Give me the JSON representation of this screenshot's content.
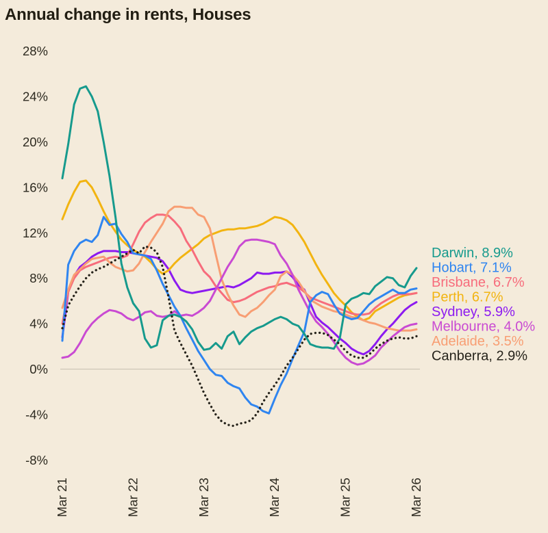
{
  "title": "Annual change in rents, Houses",
  "colors": {
    "background": "#f4ebdb",
    "title_text": "#211d12",
    "axis_text": "#2d2a20",
    "zero_line": "#cdc6b7"
  },
  "chart_data": {
    "type": "line",
    "title": "Annual change in rents, Houses",
    "xlabel": "",
    "ylabel": "",
    "y_unit": "%",
    "ylim": [
      -8,
      28
    ],
    "y_ticks": [
      28,
      24,
      20,
      16,
      12,
      8,
      4,
      0,
      -4,
      -8
    ],
    "y_tick_labels": [
      "28%",
      "24%",
      "20%",
      "16%",
      "12%",
      "8%",
      "4%",
      "0%",
      "-4%",
      "-8%"
    ],
    "x_tick_labels": [
      "Mar 21",
      "Mar 22",
      "Mar 23",
      "Mar 24",
      "Mar 25",
      "Mar 26"
    ],
    "x_tick_indices": [
      0,
      12,
      24,
      36,
      48,
      60
    ],
    "x_range_months": 60,
    "grid": "zero-line-only",
    "legend_position": "right",
    "series": [
      {
        "name": "Darwin",
        "label": "Darwin, 8.9%",
        "end_value": 8.9,
        "color": "#169a8d",
        "style": "solid",
        "values": [
          16.8,
          19.8,
          23.3,
          24.7,
          24.9,
          24.0,
          22.7,
          20.0,
          17.0,
          13.4,
          9.3,
          7.2,
          5.8,
          5.1,
          2.7,
          1.9,
          2.1,
          4.3,
          4.7,
          4.8,
          4.6,
          4.2,
          3.5,
          2.4,
          1.7,
          1.8,
          2.3,
          1.8,
          2.9,
          3.3,
          2.2,
          2.8,
          3.3,
          3.6,
          3.8,
          4.1,
          4.4,
          4.6,
          4.4,
          4.0,
          3.8,
          3.1,
          2.2,
          2.0,
          1.9,
          1.9,
          1.8,
          2.7,
          5.7,
          6.2,
          6.4,
          6.7,
          6.6,
          7.3,
          7.7,
          8.1,
          8.0,
          7.4,
          7.2,
          8.2,
          8.9
        ]
      },
      {
        "name": "Hobart",
        "label": "Hobart, 7.1%",
        "end_value": 7.1,
        "color": "#2f85f0",
        "style": "solid",
        "values": [
          2.5,
          9.2,
          10.4,
          11.1,
          11.4,
          11.2,
          11.8,
          13.4,
          12.7,
          12.8,
          11.9,
          11.2,
          10.2,
          10.1,
          10.0,
          9.7,
          8.7,
          7.5,
          6.5,
          5.5,
          4.7,
          3.6,
          2.6,
          1.6,
          0.8,
          0.0,
          -0.5,
          -0.6,
          -1.2,
          -1.5,
          -1.7,
          -2.5,
          -3.1,
          -3.3,
          -3.7,
          -3.9,
          -2.6,
          -1.4,
          -0.4,
          0.9,
          2.1,
          3.3,
          5.9,
          6.5,
          6.8,
          6.6,
          5.7,
          4.9,
          4.6,
          4.4,
          4.5,
          5.1,
          5.7,
          6.1,
          6.4,
          6.7,
          7.0,
          6.7,
          6.7,
          7.0,
          7.1
        ]
      },
      {
        "name": "Brisbane",
        "label": "Brisbane, 6.7%",
        "end_value": 6.7,
        "color": "#f76c7c",
        "style": "solid",
        "values": [
          4.0,
          6.8,
          8.0,
          8.7,
          9.0,
          9.2,
          9.4,
          9.6,
          9.8,
          9.9,
          9.8,
          10.0,
          11.0,
          12.1,
          12.9,
          13.3,
          13.6,
          13.6,
          13.5,
          13.0,
          12.4,
          11.3,
          10.5,
          9.5,
          8.6,
          8.1,
          7.3,
          6.7,
          6.1,
          5.9,
          6.0,
          6.2,
          6.5,
          6.8,
          7.0,
          7.2,
          7.3,
          7.5,
          7.6,
          7.4,
          7.2,
          6.8,
          6.3,
          6.1,
          5.9,
          5.7,
          5.5,
          5.3,
          5.1,
          4.9,
          4.8,
          4.8,
          4.9,
          5.4,
          5.8,
          6.1,
          6.4,
          6.6,
          6.6,
          6.6,
          6.7
        ]
      },
      {
        "name": "Perth",
        "label": "Perth, 6.7%",
        "end_value": 6.7,
        "color": "#f2b411",
        "style": "solid",
        "values": [
          13.2,
          14.5,
          15.6,
          16.5,
          16.6,
          16.0,
          15.0,
          13.9,
          12.9,
          12.1,
          11.4,
          10.9,
          10.5,
          10.2,
          9.9,
          9.4,
          8.8,
          8.4,
          8.7,
          9.3,
          9.8,
          10.2,
          10.6,
          11.0,
          11.5,
          11.8,
          12.0,
          12.2,
          12.3,
          12.3,
          12.4,
          12.4,
          12.5,
          12.6,
          12.8,
          13.1,
          13.4,
          13.3,
          13.1,
          12.7,
          12.0,
          11.2,
          10.2,
          9.2,
          8.3,
          7.5,
          6.7,
          6.1,
          5.6,
          5.0,
          4.6,
          4.3,
          4.5,
          5.1,
          5.4,
          5.7,
          6.0,
          6.3,
          6.5,
          6.6,
          6.7
        ]
      },
      {
        "name": "Sydney",
        "label": "Sydney, 5.9%",
        "end_value": 5.9,
        "color": "#8c1af0",
        "style": "solid",
        "values": [
          2.8,
          6.8,
          8.2,
          9.0,
          9.4,
          9.9,
          10.2,
          10.4,
          10.4,
          10.4,
          10.3,
          10.3,
          10.2,
          10.1,
          10.0,
          9.9,
          9.8,
          9.5,
          8.8,
          7.8,
          7.0,
          6.8,
          6.7,
          6.8,
          6.9,
          7.0,
          7.1,
          7.2,
          7.3,
          7.2,
          7.4,
          7.7,
          8.0,
          8.5,
          8.4,
          8.4,
          8.5,
          8.5,
          8.6,
          8.1,
          7.4,
          7.0,
          5.8,
          4.6,
          4.1,
          3.7,
          3.2,
          2.7,
          2.3,
          1.8,
          1.5,
          1.3,
          1.6,
          2.2,
          2.9,
          3.5,
          4.0,
          4.6,
          5.2,
          5.6,
          5.9
        ]
      },
      {
        "name": "Melbourne",
        "label": "Melbourne, 4.0%",
        "end_value": 4.0,
        "color": "#c94ad2",
        "style": "solid",
        "values": [
          1.0,
          1.1,
          1.5,
          2.3,
          3.3,
          4.0,
          4.5,
          4.9,
          5.2,
          5.1,
          4.9,
          4.5,
          4.3,
          4.6,
          5.0,
          5.1,
          4.7,
          4.6,
          4.7,
          5.1,
          4.7,
          4.8,
          4.7,
          5.0,
          5.4,
          6.0,
          7.0,
          8.0,
          9.0,
          9.8,
          10.8,
          11.3,
          11.4,
          11.4,
          11.3,
          11.2,
          11.0,
          10.0,
          9.3,
          8.3,
          7.0,
          6.0,
          5.0,
          4.2,
          3.7,
          3.1,
          2.4,
          1.6,
          1.0,
          0.6,
          0.4,
          0.5,
          0.8,
          1.2,
          1.9,
          2.4,
          2.9,
          3.3,
          3.7,
          3.9,
          4.0
        ]
      },
      {
        "name": "Adelaide",
        "label": "Adelaide, 3.5%",
        "end_value": 3.5,
        "color": "#f89e73",
        "style": "solid",
        "values": [
          5.4,
          7.0,
          8.3,
          8.8,
          9.3,
          9.7,
          9.8,
          9.9,
          9.4,
          9.0,
          8.8,
          8.6,
          8.7,
          9.3,
          10.3,
          11.2,
          12.0,
          12.8,
          13.9,
          14.3,
          14.3,
          14.2,
          14.2,
          13.6,
          13.4,
          12.4,
          10.1,
          7.9,
          6.6,
          5.6,
          4.8,
          4.6,
          5.1,
          5.4,
          5.9,
          6.5,
          7.0,
          8.2,
          8.6,
          8.3,
          7.7,
          6.9,
          6.1,
          5.8,
          5.5,
          5.3,
          5.1,
          5.0,
          4.8,
          4.6,
          4.5,
          4.3,
          4.1,
          4.0,
          3.8,
          3.6,
          3.5,
          3.4,
          3.4,
          3.4,
          3.5
        ]
      },
      {
        "name": "Canberra",
        "label": "Canberra, 2.9%",
        "end_value": 2.9,
        "color": "#26231b",
        "style": "dotted",
        "values": [
          3.6,
          5.6,
          6.5,
          7.3,
          8.0,
          8.5,
          8.8,
          9.0,
          9.3,
          9.6,
          9.9,
          10.2,
          10.5,
          10.2,
          10.8,
          10.7,
          10.3,
          9.0,
          6.3,
          3.4,
          2.3,
          1.3,
          0.3,
          -0.9,
          -2.1,
          -3.1,
          -4.0,
          -4.6,
          -4.9,
          -5.0,
          -4.8,
          -4.7,
          -4.5,
          -3.9,
          -2.9,
          -2.1,
          -1.4,
          -0.6,
          0.3,
          1.0,
          1.8,
          2.6,
          3.1,
          3.2,
          3.2,
          3.0,
          2.6,
          2.2,
          1.6,
          1.2,
          1.0,
          1.0,
          1.3,
          1.8,
          2.2,
          2.5,
          2.7,
          2.8,
          2.7,
          2.7,
          2.9
        ]
      }
    ]
  }
}
